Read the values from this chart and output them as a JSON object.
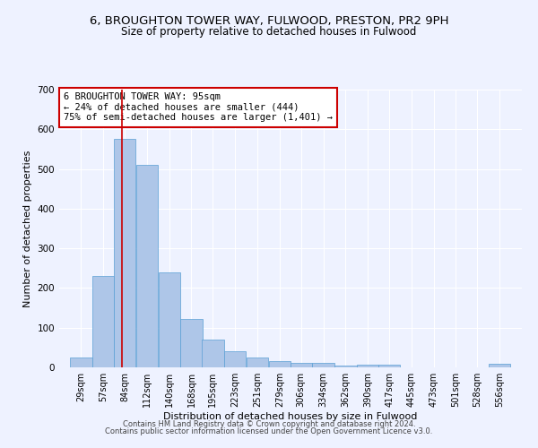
{
  "title_line1": "6, BROUGHTON TOWER WAY, FULWOOD, PRESTON, PR2 9PH",
  "title_line2": "Size of property relative to detached houses in Fulwood",
  "xlabel": "Distribution of detached houses by size in Fulwood",
  "ylabel": "Number of detached properties",
  "bar_color": "#aec6e8",
  "bar_edge_color": "#5a9fd4",
  "annotation_box_text": "6 BROUGHTON TOWER WAY: 95sqm\n← 24% of detached houses are smaller (444)\n75% of semi-detached houses are larger (1,401) →",
  "annotation_box_color": "#ffffff",
  "annotation_box_edge_color": "#cc0000",
  "vline_x": 95,
  "vline_color": "#cc0000",
  "footer_line1": "Contains HM Land Registry data © Crown copyright and database right 2024.",
  "footer_line2": "Contains public sector information licensed under the Open Government Licence v3.0.",
  "bin_edges": [
    29,
    57,
    84,
    112,
    140,
    168,
    195,
    223,
    251,
    279,
    306,
    334,
    362,
    390,
    417,
    445,
    473,
    501,
    528,
    556,
    584
  ],
  "bar_heights": [
    25,
    230,
    575,
    510,
    240,
    123,
    71,
    41,
    25,
    15,
    11,
    11,
    5,
    6,
    7,
    0,
    0,
    0,
    0,
    8
  ],
  "ylim": [
    0,
    700
  ],
  "yticks": [
    0,
    100,
    200,
    300,
    400,
    500,
    600,
    700
  ],
  "background_color": "#eef2ff",
  "grid_color": "#ffffff",
  "title_fontsize": 9.5,
  "subtitle_fontsize": 8.5,
  "axis_label_fontsize": 8,
  "tick_label_fontsize": 7,
  "footer_fontsize": 6,
  "annotation_fontsize": 7.5
}
